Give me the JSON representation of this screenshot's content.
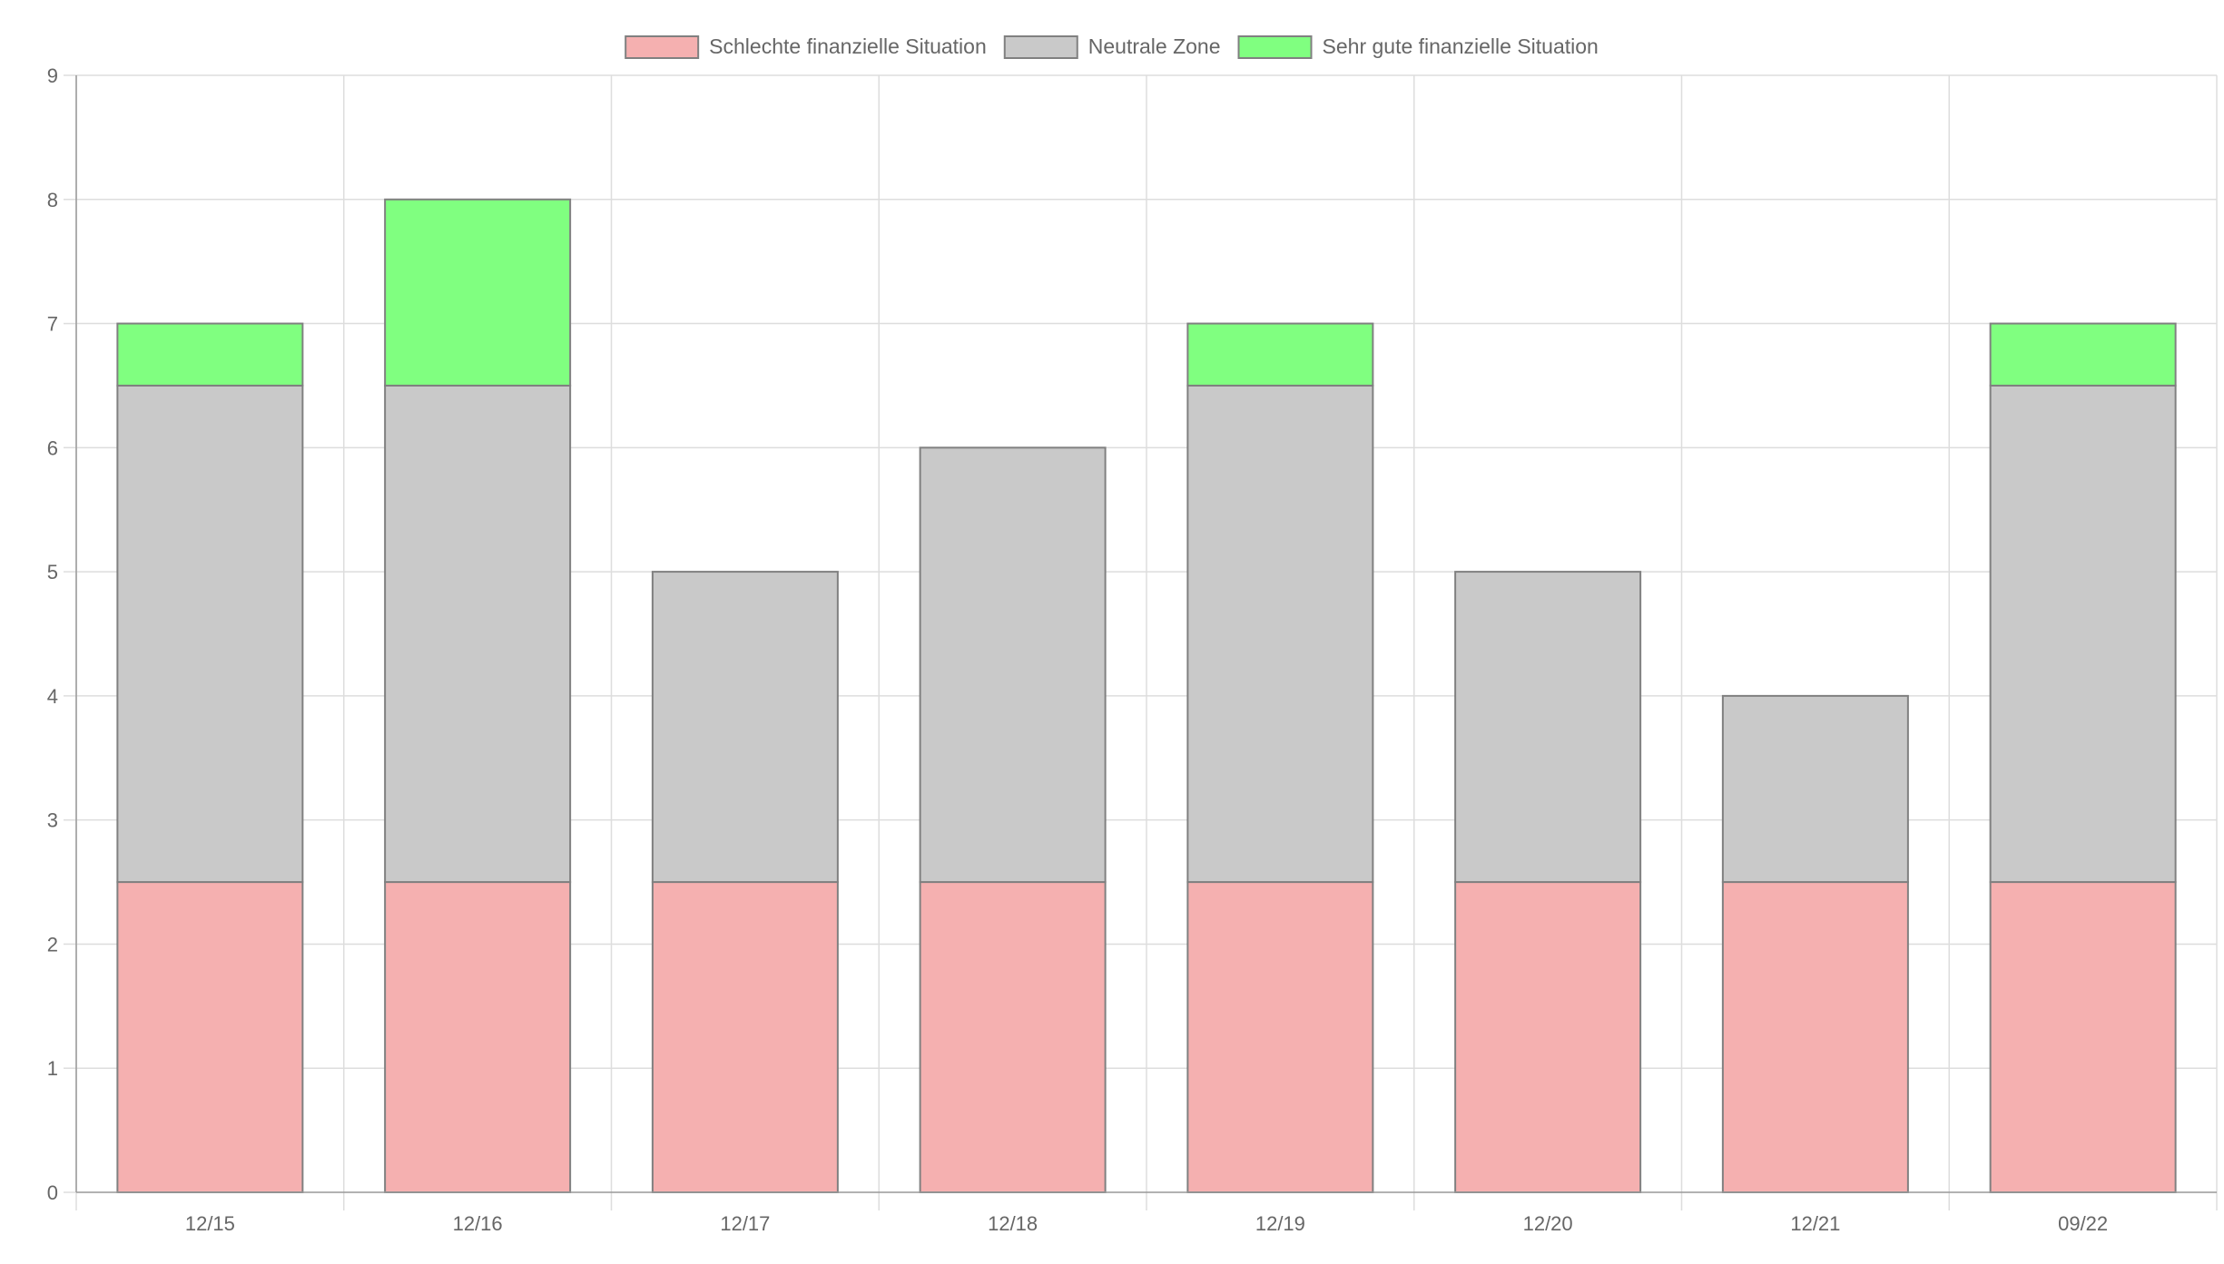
{
  "chart_data": {
    "type": "bar",
    "stacked": true,
    "title": "",
    "xlabel": "",
    "ylabel": "",
    "categories": [
      "12/15",
      "12/16",
      "12/17",
      "12/18",
      "12/19",
      "12/20",
      "12/21",
      "09/22"
    ],
    "ylim": [
      0,
      9
    ],
    "yticks": [
      0,
      1,
      2,
      3,
      4,
      5,
      6,
      7,
      8,
      9
    ],
    "grid": true,
    "legend_position": "top-center",
    "series": [
      {
        "name": "Schlechte finanzielle Situation",
        "values": [
          2.5,
          2.5,
          2.5,
          2.5,
          2.5,
          2.5,
          2.5,
          2.5
        ],
        "color": "#f5b0b0"
      },
      {
        "name": "Neutrale Zone",
        "values": [
          4,
          4,
          2.5,
          3.5,
          4,
          2.5,
          1.5,
          4
        ],
        "color": "#c9c9c9"
      },
      {
        "name": "Sehr gute finanzielle Situation",
        "values": [
          0.5,
          1.5,
          0,
          0,
          0.5,
          0,
          0,
          0.5
        ],
        "color": "#80ff80"
      }
    ],
    "colors": {
      "grid": "#dddddd",
      "axis": "#999999",
      "bar_border": "#808080",
      "label": "#666666"
    }
  }
}
